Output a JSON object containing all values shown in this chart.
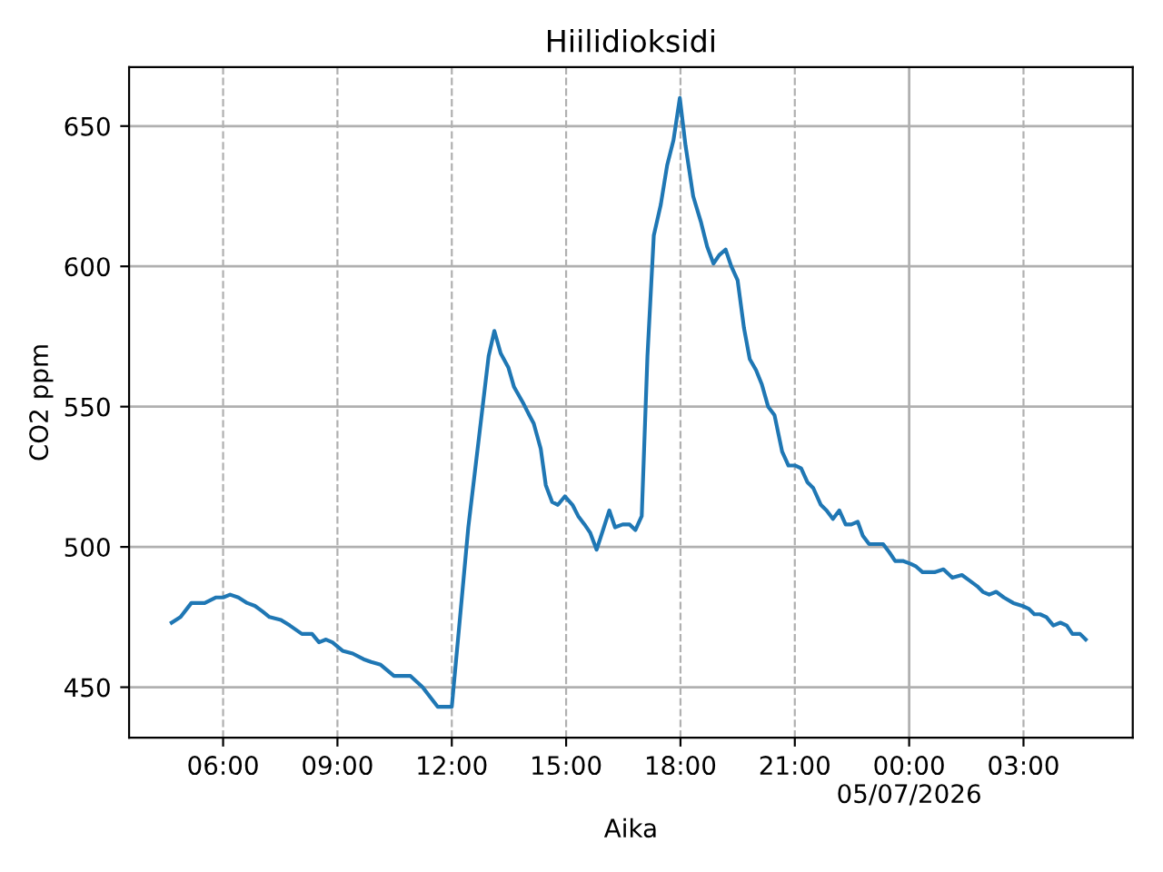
{
  "chart_data": {
    "type": "line",
    "title": "Hiilidioksidi",
    "xlabel": "Aika",
    "ylabel": "CO2 ppm",
    "x": [
      "2026-07-04T04:39",
      "2026-07-04T04:53",
      "2026-07-04T05:10",
      "2026-07-04T05:22",
      "2026-07-04T05:31",
      "2026-07-04T05:49",
      "2026-07-04T06:00",
      "2026-07-04T06:11",
      "2026-07-04T06:24",
      "2026-07-04T06:38",
      "2026-07-04T06:50",
      "2026-07-04T07:02",
      "2026-07-04T07:13",
      "2026-07-04T07:31",
      "2026-07-04T07:45",
      "2026-07-04T08:04",
      "2026-07-04T08:13",
      "2026-07-04T08:20",
      "2026-07-04T08:31",
      "2026-07-04T08:42",
      "2026-07-04T08:52",
      "2026-07-04T09:08",
      "2026-07-04T09:24",
      "2026-07-04T09:41",
      "2026-07-04T09:53",
      "2026-07-04T10:08",
      "2026-07-04T10:29",
      "2026-07-04T10:41",
      "2026-07-04T10:55",
      "2026-07-04T11:14",
      "2026-07-04T11:38",
      "2026-07-04T12:00",
      "2026-07-04T12:26",
      "2026-07-04T12:58",
      "2026-07-04T13:07",
      "2026-07-04T13:17",
      "2026-07-04T13:29",
      "2026-07-04T13:38",
      "2026-07-04T13:53",
      "2026-07-04T14:02",
      "2026-07-04T14:09",
      "2026-07-04T14:20",
      "2026-07-04T14:28",
      "2026-07-04T14:38",
      "2026-07-04T14:47",
      "2026-07-04T14:58",
      "2026-07-04T15:10",
      "2026-07-04T15:19",
      "2026-07-04T15:29",
      "2026-07-04T15:38",
      "2026-07-04T15:48",
      "2026-07-04T15:58",
      "2026-07-04T16:08",
      "2026-07-04T16:17",
      "2026-07-04T16:29",
      "2026-07-04T16:40",
      "2026-07-04T16:49",
      "2026-07-04T16:59",
      "2026-07-04T17:08",
      "2026-07-04T17:18",
      "2026-07-04T17:29",
      "2026-07-04T17:39",
      "2026-07-04T17:49",
      "2026-07-04T17:59",
      "2026-07-04T18:08",
      "2026-07-04T18:20",
      "2026-07-04T18:32",
      "2026-07-04T18:42",
      "2026-07-04T18:52",
      "2026-07-04T19:01",
      "2026-07-04T19:11",
      "2026-07-04T19:20",
      "2026-07-04T19:30",
      "2026-07-04T19:40",
      "2026-07-04T19:49",
      "2026-07-04T19:59",
      "2026-07-04T20:08",
      "2026-07-04T20:18",
      "2026-07-04T20:28",
      "2026-07-04T20:40",
      "2026-07-04T20:50",
      "2026-07-04T21:01",
      "2026-07-04T21:10",
      "2026-07-04T21:20",
      "2026-07-04T21:29",
      "2026-07-04T21:41",
      "2026-07-04T21:50",
      "2026-07-04T22:00",
      "2026-07-04T22:10",
      "2026-07-04T22:20",
      "2026-07-04T22:29",
      "2026-07-04T22:39",
      "2026-07-04T22:47",
      "2026-07-04T22:57",
      "2026-07-04T23:19",
      "2026-07-04T23:29",
      "2026-07-04T23:38",
      "2026-07-04T23:50",
      "2026-07-05T00:02",
      "2026-07-05T00:11",
      "2026-07-05T00:21",
      "2026-07-05T00:40",
      "2026-07-05T00:54",
      "2026-07-05T01:08",
      "2026-07-05T01:23",
      "2026-07-05T01:35",
      "2026-07-05T01:47",
      "2026-07-05T01:56",
      "2026-07-05T02:06",
      "2026-07-05T02:17",
      "2026-07-05T02:29",
      "2026-07-05T02:44",
      "2026-07-05T02:58",
      "2026-07-05T03:08",
      "2026-07-05T03:17",
      "2026-07-05T03:26",
      "2026-07-05T03:36",
      "2026-07-05T03:47",
      "2026-07-05T03:58",
      "2026-07-05T04:08",
      "2026-07-05T04:17",
      "2026-07-05T04:29",
      "2026-07-05T04:38"
    ],
    "series": [
      {
        "color": "#1f77b4",
        "values": [
          473,
          475,
          480,
          480,
          480,
          482,
          482,
          483,
          482,
          480,
          479,
          477,
          475,
          474,
          472,
          469,
          469,
          469,
          466,
          467,
          466,
          463,
          462,
          460,
          459,
          458,
          454,
          454,
          454,
          450,
          443,
          443,
          507,
          568,
          577,
          569,
          564,
          557,
          551,
          547,
          544,
          535,
          522,
          516,
          515,
          518,
          515,
          511,
          508,
          505,
          499,
          506,
          513,
          507,
          508,
          508,
          506,
          511,
          568,
          611,
          622,
          636,
          645,
          660,
          643,
          625,
          616,
          607,
          601,
          604,
          606,
          600,
          595,
          578,
          567,
          563,
          558,
          550,
          547,
          534,
          529,
          529,
          528,
          523,
          521,
          515,
          513,
          510,
          513,
          508,
          508,
          509,
          504,
          501,
          501,
          498,
          495,
          495,
          494,
          493,
          491,
          491,
          492,
          489,
          490,
          488,
          486,
          484,
          483,
          484,
          482,
          480,
          479,
          478,
          476,
          476,
          475,
          472,
          473,
          472,
          469,
          469,
          467
        ]
      }
    ],
    "xlim": [
      "2026-07-04T03:32",
      "2026-07-05T05:52"
    ],
    "xticks": [
      {
        "value": "2026-07-04T06:00",
        "label": "06:00"
      },
      {
        "value": "2026-07-04T09:00",
        "label": "09:00"
      },
      {
        "value": "2026-07-04T12:00",
        "label": "12:00"
      },
      {
        "value": "2026-07-04T15:00",
        "label": "15:00"
      },
      {
        "value": "2026-07-04T18:00",
        "label": "18:00"
      },
      {
        "value": "2026-07-04T21:00",
        "label": "21:00"
      },
      {
        "value": "2026-07-05T00:00",
        "label": "00:00\n05/07/2026"
      },
      {
        "value": "2026-07-05T03:00",
        "label": "03:00"
      }
    ],
    "ylim": [
      432,
      671
    ],
    "yticks": [
      450,
      500,
      550,
      600,
      650
    ],
    "grid": true,
    "line_style": "solid",
    "marker": "none"
  }
}
